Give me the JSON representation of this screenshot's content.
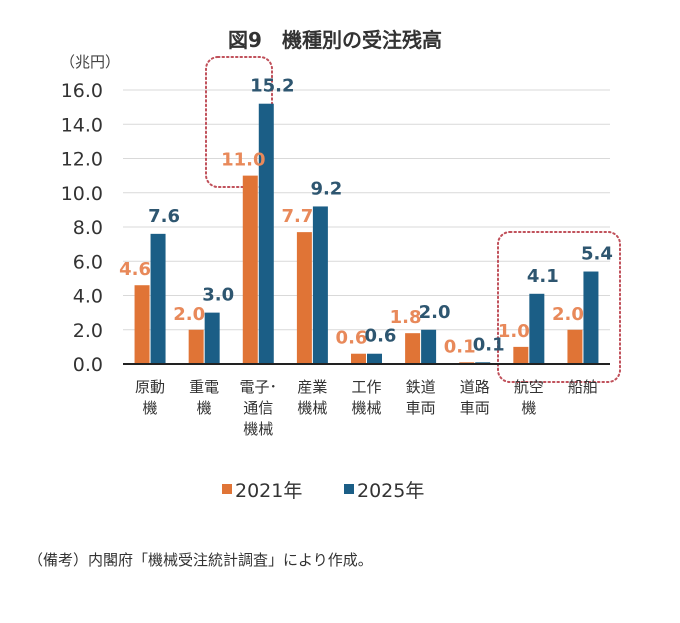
{
  "chart_data": {
    "type": "bar",
    "title": "図9　機種別の受注残高",
    "ylabel": "（兆円）",
    "xlabel": "",
    "ylim": [
      0,
      16
    ],
    "yticks": [
      "0.0",
      "2.0",
      "4.0",
      "6.0",
      "8.0",
      "10.0",
      "12.0",
      "14.0",
      "16.0"
    ],
    "ytick_values": [
      0,
      2,
      4,
      6,
      8,
      10,
      12,
      14,
      16
    ],
    "grid": true,
    "legend_position": "bottom",
    "categories": [
      [
        "原動",
        "機"
      ],
      [
        "重電",
        "機"
      ],
      [
        "電子･",
        "通信",
        "機械"
      ],
      [
        "産業",
        "機械"
      ],
      [
        "工作",
        "機械"
      ],
      [
        "鉄道",
        "車両"
      ],
      [
        "道路",
        "車両"
      ],
      [
        "航空",
        "機"
      ],
      [
        "船舶"
      ]
    ],
    "category_names": [
      "原動機",
      "重電機",
      "電子･通信機械",
      "産業機械",
      "工作機械",
      "鉄道車両",
      "道路車両",
      "航空機",
      "船舶"
    ],
    "series": [
      {
        "name": "2021年",
        "color": "#E07436",
        "label_color": "#E8895A",
        "values": [
          4.6,
          2.0,
          11.0,
          7.7,
          0.6,
          1.8,
          0.1,
          1.0,
          2.0
        ],
        "labels": [
          "4.6",
          "2.0",
          "11.0",
          "7.7",
          "0.6",
          "1.8",
          "0.1",
          "1.0",
          "2.0"
        ]
      },
      {
        "name": "2025年",
        "color": "#1B5E86",
        "label_color": "#2E5670",
        "values": [
          7.6,
          3.0,
          15.2,
          9.2,
          0.6,
          2.0,
          0.1,
          4.1,
          5.4
        ],
        "labels": [
          "7.6",
          "3.0",
          "15.2",
          "9.2",
          "0.6",
          "2.0",
          "0.1",
          "4.1",
          "5.4"
        ]
      }
    ],
    "highlights": [
      {
        "categories": [
          "電子･通信機械"
        ],
        "style": "dotted-rounded-box",
        "color": "#C0505A"
      },
      {
        "categories": [
          "航空機",
          "船舶"
        ],
        "style": "dotted-rounded-box",
        "color": "#C0505A"
      }
    ]
  },
  "note": "（備考）内閣府「機械受注統計調査」により作成。"
}
